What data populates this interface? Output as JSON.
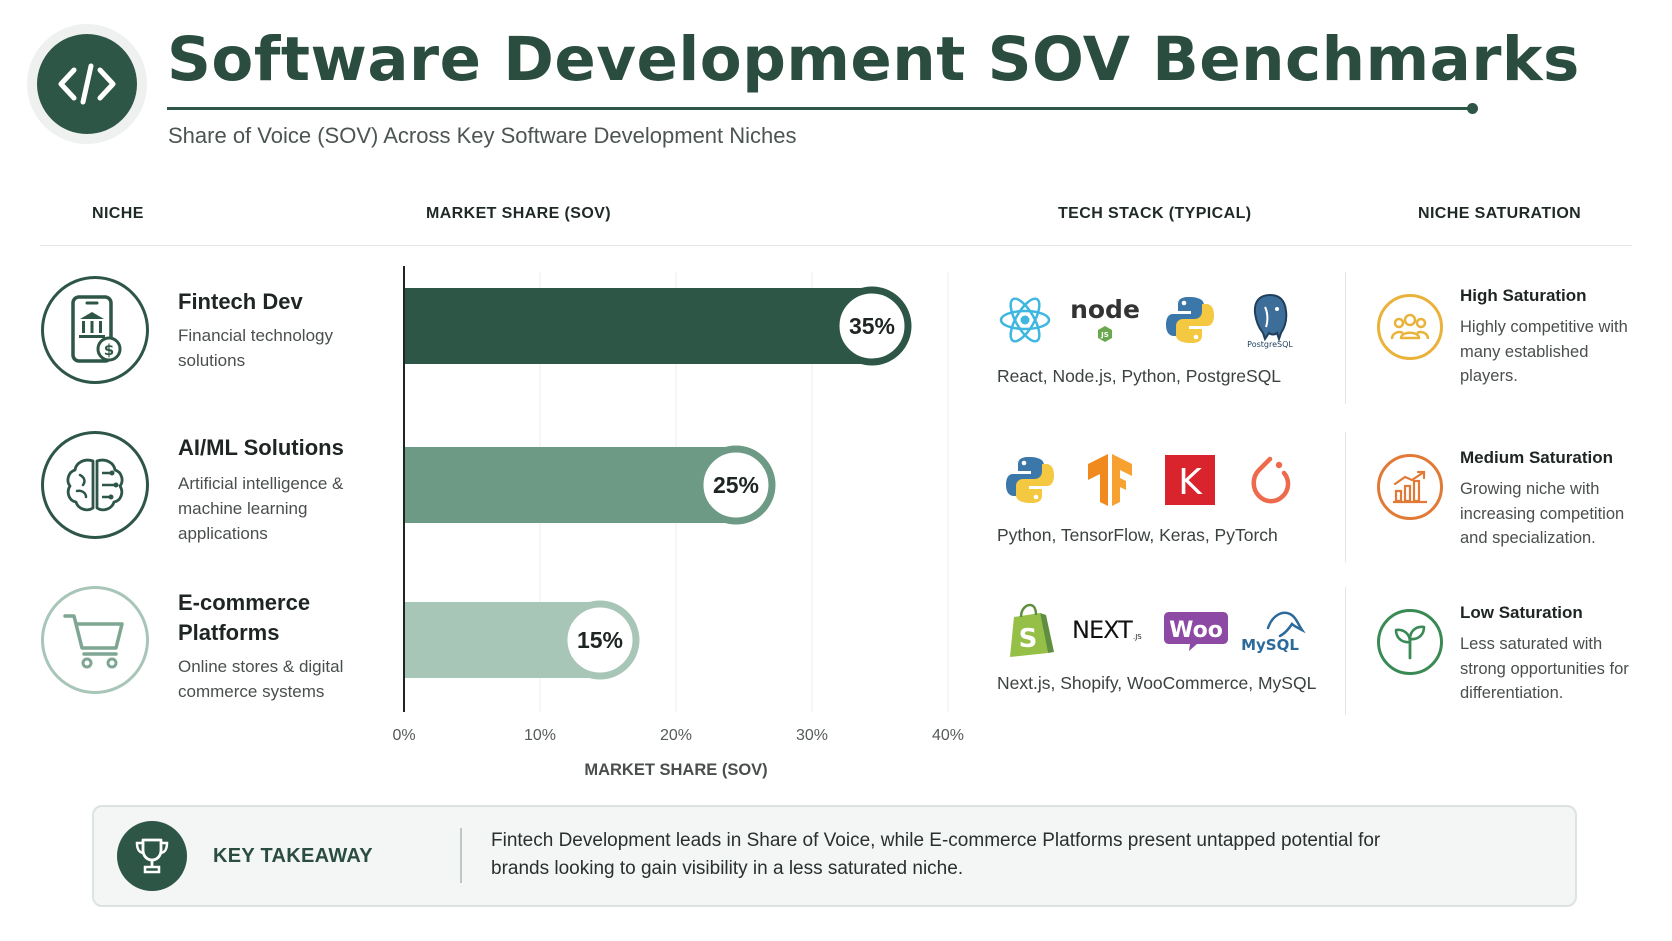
{
  "header": {
    "title": "Software Development SOV Benchmarks",
    "subtitle": "Share of Voice (SOV) Across Key Software Development Niches",
    "logo_icon": "code-brackets-icon"
  },
  "columns": {
    "niche": "NICHE",
    "market_share": "MARKET SHARE (SOV)",
    "tech_stack": "TECH STACK (TYPICAL)",
    "saturation": "NICHE SATURATION"
  },
  "niches": [
    {
      "name": "Fintech Dev",
      "description": "Financial technology solutions",
      "icon": "mobile-bank-icon",
      "tech_icons": [
        "react-icon",
        "nodejs-icon",
        "python-icon",
        "postgresql-icon"
      ],
      "tech_list": "React, Node.js, Python, PostgreSQL",
      "saturation_title": "High Saturation",
      "saturation_desc": "Highly competitive with many established players.",
      "saturation_icon": "people-group-icon",
      "saturation_color": "#e9b23a"
    },
    {
      "name": "AI/ML Solutions",
      "description": "Artificial intelligence & machine learning applications",
      "icon": "brain-circuit-icon",
      "tech_icons": [
        "python-icon",
        "tensorflow-icon",
        "keras-icon",
        "pytorch-icon"
      ],
      "tech_list": "Python, TensorFlow, Keras, PyTorch",
      "saturation_title": "Medium Saturation",
      "saturation_desc": "Growing niche with increasing competition and specialization.",
      "saturation_icon": "growth-chart-icon",
      "saturation_color": "#e27a37"
    },
    {
      "name": "E-commerce Platforms",
      "description": "Online stores & digital commerce systems",
      "icon": "shopping-cart-icon",
      "tech_icons": [
        "shopify-icon",
        "nextjs-icon",
        "woocommerce-icon",
        "mysql-icon"
      ],
      "tech_list": "Next.js, Shopify, WooCommerce, MySQL",
      "saturation_title": "Low Saturation",
      "saturation_desc": "Less saturated with strong opportunities for differentiation.",
      "saturation_icon": "sprout-icon",
      "saturation_color": "#3a8a55"
    }
  ],
  "tech_logo_text": {
    "node": "node",
    "node_js": "JS",
    "postgres": "PostgreSQL",
    "keras": "K",
    "next": "NEXT",
    "next_js": ".JS",
    "woo": "Woo",
    "mysql": "MySQL"
  },
  "chart_data": {
    "type": "bar",
    "orientation": "horizontal",
    "categories": [
      "Fintech Dev",
      "AI/ML Solutions",
      "E-commerce Platforms"
    ],
    "values": [
      35,
      25,
      15
    ],
    "value_labels": [
      "35%",
      "25%",
      "15%"
    ],
    "colors": [
      "#2d5646",
      "#6d9a85",
      "#a8c6b8"
    ],
    "xlabel": "MARKET SHARE (SOV)",
    "xlim": [
      0,
      40
    ],
    "xticks": [
      "0%",
      "10%",
      "20%",
      "30%",
      "40%"
    ],
    "grid": true
  },
  "takeaway": {
    "label": "KEY TAKEAWAY",
    "icon": "trophy-icon",
    "text": "Fintech Development leads in Share of Voice, while E-commerce Platforms present untapped potential for brands looking to gain visibility in a less saturated niche."
  }
}
